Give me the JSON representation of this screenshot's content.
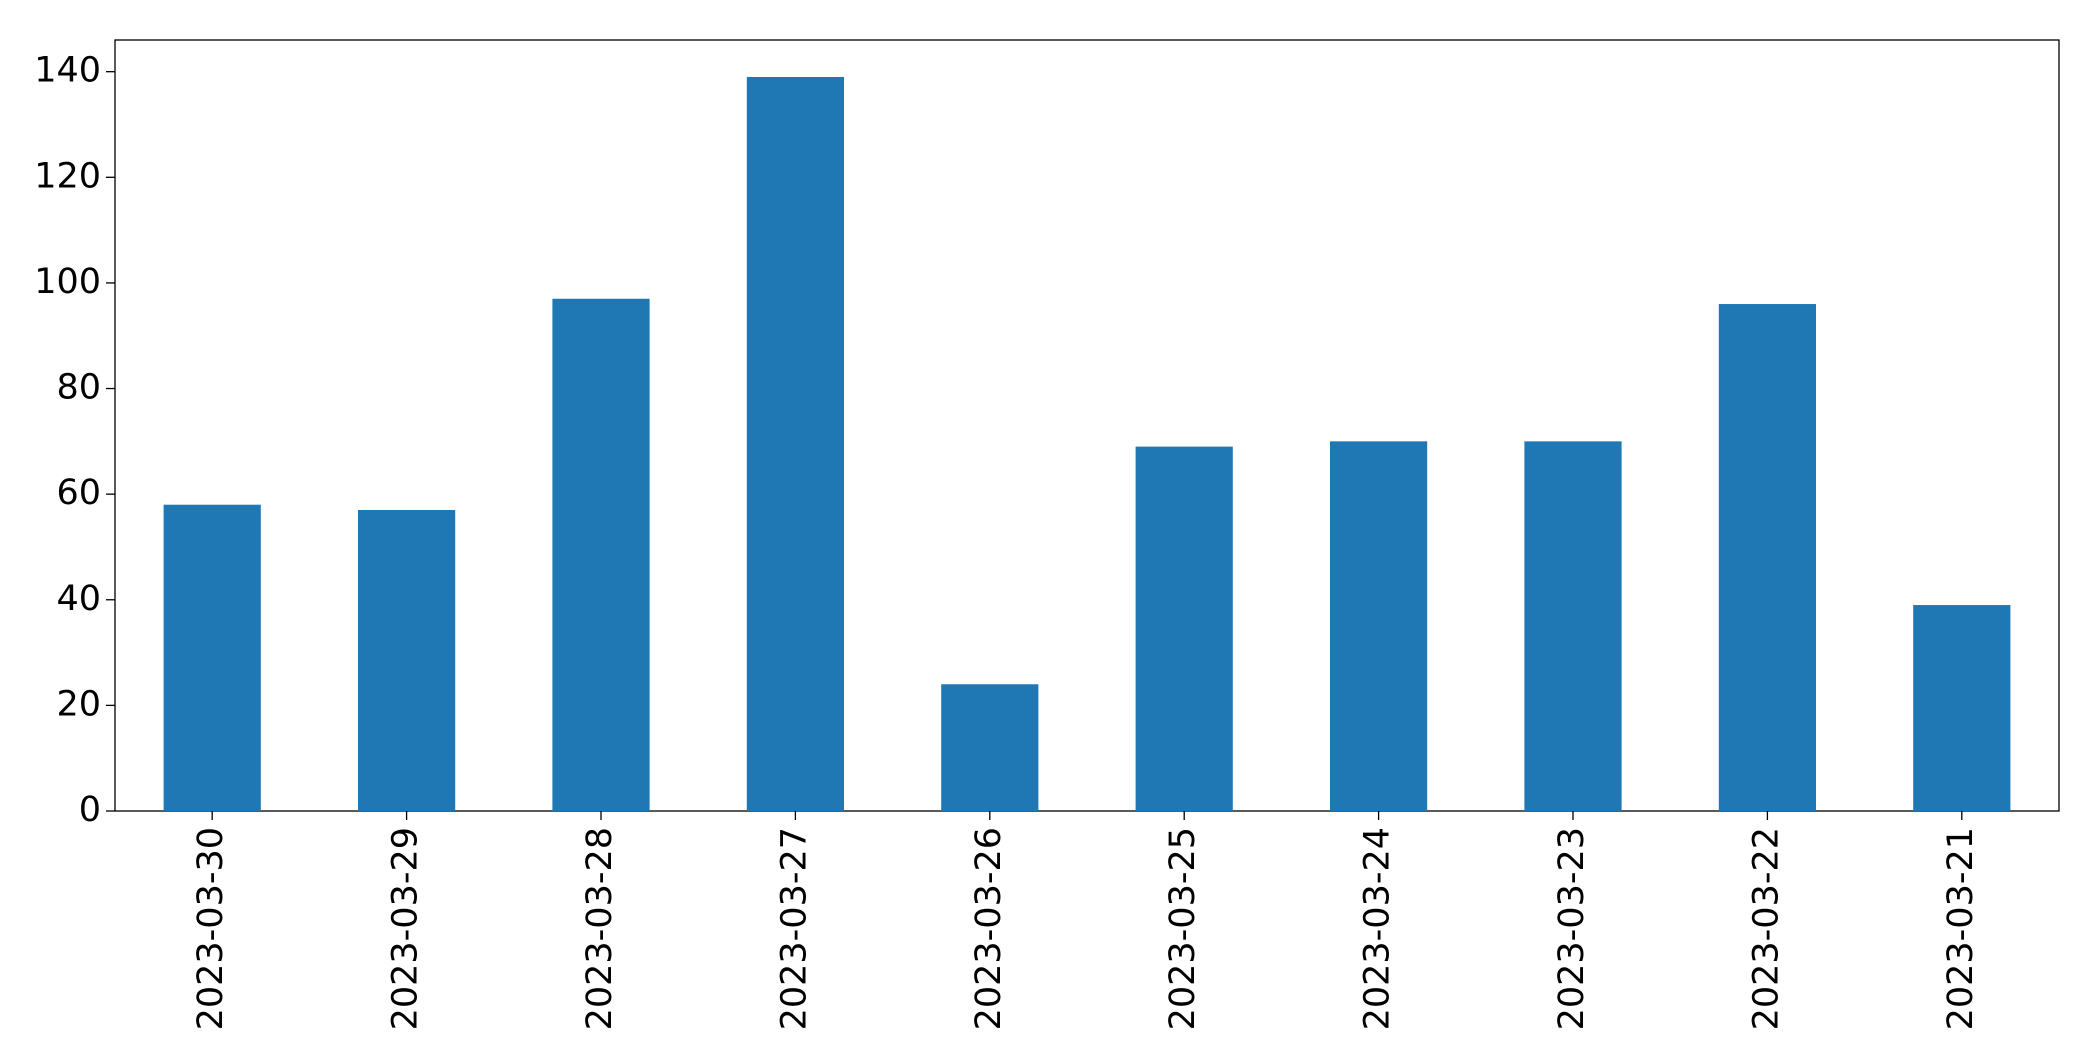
{
  "chart_data": {
    "type": "bar",
    "categories": [
      "2023-03-30",
      "2023-03-29",
      "2023-03-28",
      "2023-03-27",
      "2023-03-26",
      "2023-03-25",
      "2023-03-24",
      "2023-03-23",
      "2023-03-22",
      "2023-03-21"
    ],
    "values": [
      58,
      57,
      97,
      139,
      24,
      69,
      70,
      70,
      96,
      39
    ],
    "color": "#1f77b4",
    "ylim": [
      0,
      146
    ],
    "yticks": [
      0,
      20,
      40,
      60,
      80,
      100,
      120,
      140
    ],
    "grid": false
  }
}
